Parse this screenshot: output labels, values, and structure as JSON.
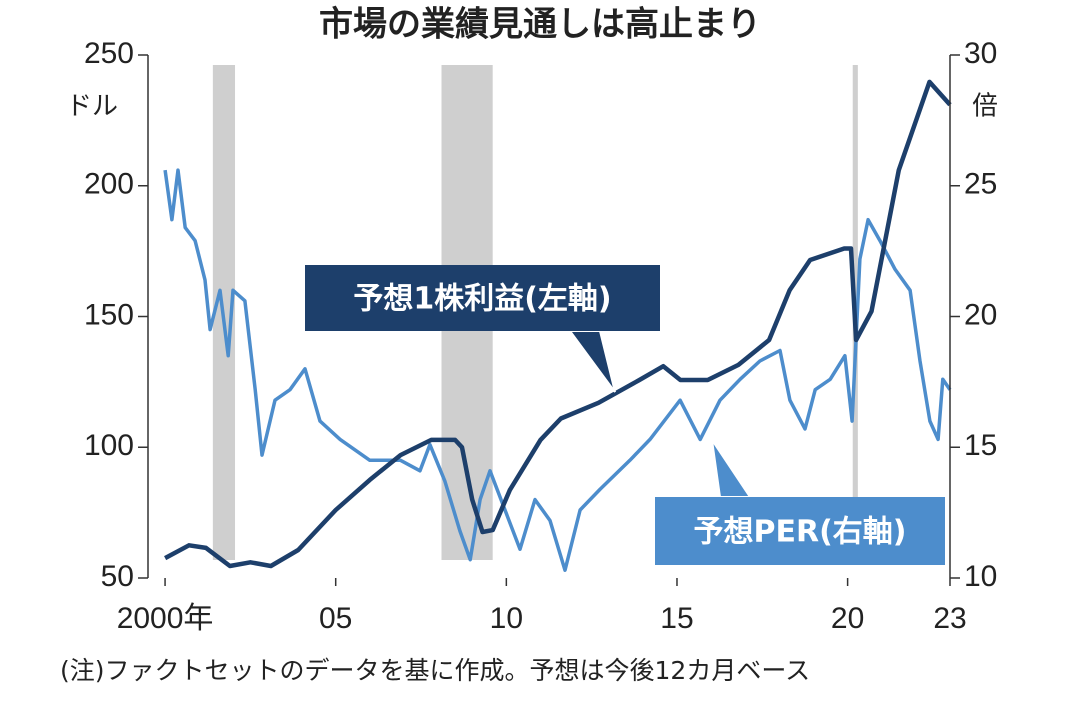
{
  "chart_data": {
    "type": "line",
    "title": "市場の業績見通しは高止まり",
    "y_unit": "ドル",
    "y2_unit": "倍",
    "note": "(注)ファクトセットのデータを基に作成。予想は今後12カ月ベース",
    "xlim": [
      1999.5,
      2023.0
    ],
    "xticks": [
      {
        "value": 2000,
        "label": "2000年"
      },
      {
        "value": 2005,
        "label": "05"
      },
      {
        "value": 2010,
        "label": "10"
      },
      {
        "value": 2015,
        "label": "15"
      },
      {
        "value": 2020,
        "label": "20"
      },
      {
        "value": 2023,
        "label": "23"
      }
    ],
    "ylim": [
      50,
      250
    ],
    "yticks": [
      50,
      100,
      150,
      200,
      250
    ],
    "y2lim": [
      10,
      30
    ],
    "y2ticks": [
      10,
      15,
      20,
      25,
      30
    ],
    "shaded_periods": [
      [
        2001.4,
        2002.05
      ],
      [
        2008.1,
        2009.6
      ],
      [
        2020.15,
        2020.3
      ]
    ],
    "shade_color": "#cfcfcf",
    "series": [
      {
        "name": "予想1株利益(左軸)",
        "color": "#1d3f6b",
        "axis": "y",
        "x": [
          2000.0,
          2000.7,
          2001.2,
          2001.9,
          2002.5,
          2003.1,
          2003.9,
          2005.0,
          2006.0,
          2006.9,
          2007.8,
          2008.5,
          2008.7,
          2009.0,
          2009.3,
          2009.6,
          2010.1,
          2011.0,
          2011.6,
          2012.7,
          2013.9,
          2014.6,
          2015.1,
          2015.9,
          2016.8,
          2017.7,
          2018.3,
          2018.9,
          2019.9,
          2020.1,
          2020.25,
          2020.7,
          2021.5,
          2022.4,
          2023.0
        ],
        "values": [
          57.6,
          62.5,
          61.5,
          54.6,
          56,
          54.6,
          60.7,
          76,
          87.5,
          97,
          102.8,
          102.8,
          100,
          80,
          67.6,
          68.3,
          83.6,
          102.8,
          111,
          117,
          125.7,
          131,
          125.7,
          125.7,
          131.5,
          141,
          160,
          171.6,
          176,
          176,
          141,
          152,
          206,
          239.7,
          231
        ]
      },
      {
        "name": "予想PER(右軸)",
        "color": "#4d8dcc",
        "axis": "y2",
        "x": [
          2000.0,
          2000.2,
          2000.38,
          2000.59,
          2000.88,
          2001.17,
          2001.32,
          2001.61,
          2001.85,
          2001.99,
          2002.34,
          2002.64,
          2002.84,
          2003.22,
          2003.66,
          2004.1,
          2004.54,
          2005.13,
          2006.0,
          2006.9,
          2007.47,
          2007.76,
          2008.2,
          2008.64,
          2008.94,
          2009.23,
          2009.52,
          2009.96,
          2010.4,
          2010.84,
          2011.28,
          2011.72,
          2012.16,
          2012.75,
          2013.62,
          2014.21,
          2015.09,
          2015.68,
          2016.26,
          2016.85,
          2017.43,
          2018.02,
          2018.31,
          2018.75,
          2019.05,
          2019.49,
          2019.92,
          2020.13,
          2020.36,
          2020.6,
          2020.95,
          2021.39,
          2021.83,
          2022.12,
          2022.41,
          2022.65,
          2022.79,
          2023.0
        ],
        "values": [
          25.6,
          23.7,
          25.6,
          23.4,
          22.9,
          21.4,
          19.5,
          21,
          18.5,
          21,
          20.6,
          17.2,
          14.7,
          16.8,
          17.2,
          18,
          16,
          15.3,
          14.5,
          14.5,
          14.1,
          15.1,
          13.7,
          11.8,
          10.7,
          13,
          14.1,
          12.6,
          11.1,
          13,
          12.2,
          10.3,
          12.6,
          13.4,
          14.5,
          15.3,
          16.8,
          15.3,
          16.8,
          17.6,
          18.3,
          18.7,
          16.8,
          15.7,
          17.2,
          17.6,
          18.5,
          16,
          22.2,
          23.7,
          22.9,
          21.8,
          21,
          18.3,
          16,
          15.3,
          17.6,
          17.2
        ]
      }
    ]
  }
}
